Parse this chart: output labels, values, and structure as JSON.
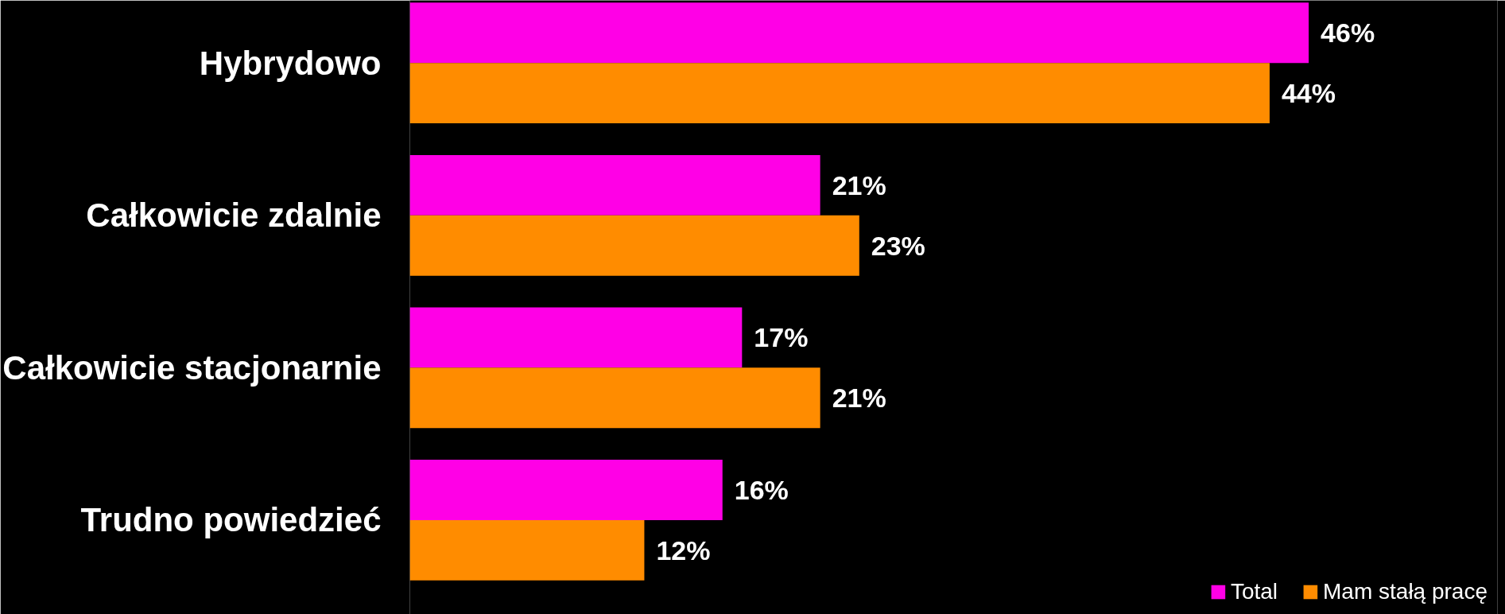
{
  "chart_data": {
    "type": "bar",
    "orientation": "horizontal",
    "categories": [
      "Hybrydowo",
      "Całkowicie zdalnie",
      "Całkowicie stacjonarnie",
      "Trudno powiedzieć"
    ],
    "series": [
      {
        "name": "Total",
        "color": "#ff00e6",
        "values": [
          46,
          21,
          17,
          16
        ],
        "value_labels": [
          "46%",
          "21%",
          "17%",
          "16%"
        ]
      },
      {
        "name": "Mam stałą pracę",
        "color": "#ff8c00",
        "values": [
          44,
          23,
          21,
          12
        ],
        "value_labels": [
          "44%",
          "23%",
          "21%",
          "12%"
        ]
      }
    ],
    "legend": "bottom right"
  }
}
